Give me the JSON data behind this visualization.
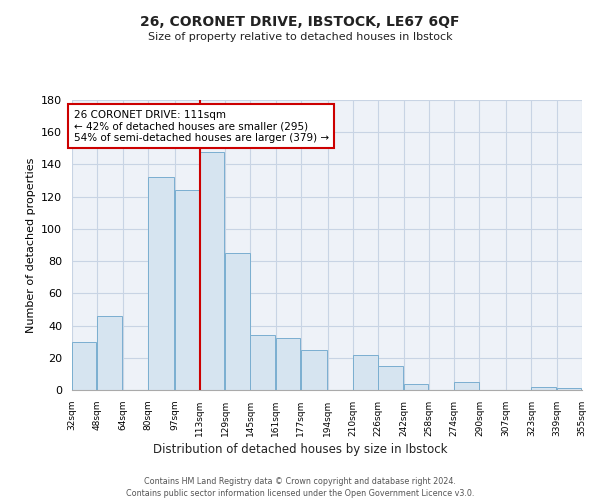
{
  "title": "26, CORONET DRIVE, IBSTOCK, LE67 6QF",
  "subtitle": "Size of property relative to detached houses in Ibstock",
  "xlabel": "Distribution of detached houses by size in Ibstock",
  "ylabel": "Number of detached properties",
  "bar_color": "#d6e4f0",
  "bar_edge_color": "#7aaed0",
  "background_color": "#ffffff",
  "plot_bg_color": "#eef2f8",
  "grid_color": "#c8d4e4",
  "bins": [
    32,
    48,
    64,
    80,
    97,
    113,
    129,
    145,
    161,
    177,
    194,
    210,
    226,
    242,
    258,
    274,
    290,
    307,
    323,
    339,
    355
  ],
  "bin_labels": [
    "32sqm",
    "48sqm",
    "64sqm",
    "80sqm",
    "97sqm",
    "113sqm",
    "129sqm",
    "145sqm",
    "161sqm",
    "177sqm",
    "194sqm",
    "210sqm",
    "226sqm",
    "242sqm",
    "258sqm",
    "274sqm",
    "290sqm",
    "307sqm",
    "323sqm",
    "339sqm",
    "355sqm"
  ],
  "values": [
    30,
    46,
    0,
    132,
    124,
    148,
    85,
    34,
    32,
    25,
    0,
    22,
    15,
    4,
    0,
    5,
    0,
    0,
    2,
    1
  ],
  "ylim": [
    0,
    180
  ],
  "yticks": [
    0,
    20,
    40,
    60,
    80,
    100,
    120,
    140,
    160,
    180
  ],
  "property_line_x": 113,
  "property_line_color": "#cc0000",
  "annotation_text": "26 CORONET DRIVE: 111sqm\n← 42% of detached houses are smaller (295)\n54% of semi-detached houses are larger (379) →",
  "annotation_box_color": "#ffffff",
  "annotation_box_edge": "#cc0000",
  "footer_line1": "Contains HM Land Registry data © Crown copyright and database right 2024.",
  "footer_line2": "Contains public sector information licensed under the Open Government Licence v3.0."
}
